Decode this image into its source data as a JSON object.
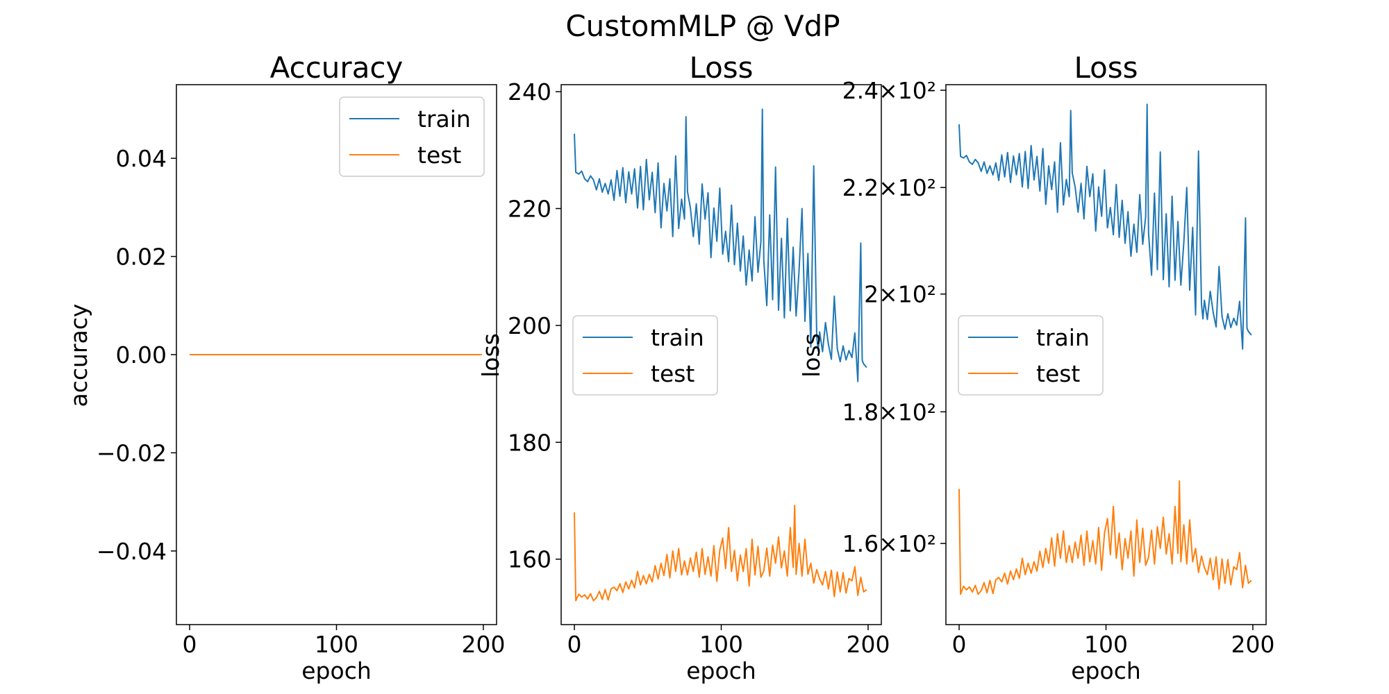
{
  "figure_title": "CustomMLP @ VdP",
  "colors": {
    "train": "#1f77b4",
    "test": "#ff7f0e"
  },
  "chart_data": [
    {
      "type": "line",
      "title": "Accuracy",
      "xlabel": "epoch",
      "ylabel": "accuracy",
      "xlim": [
        -9,
        209
      ],
      "ylim": [
        -0.055,
        0.055
      ],
      "xticks": [
        0,
        100,
        200
      ],
      "xticklabels": [
        "0",
        "100",
        "200"
      ],
      "yticks": [
        0.04,
        0.02,
        0.0,
        -0.02,
        -0.04
      ],
      "yticklabels": [
        "0.04",
        "0.02",
        "0.00",
        "−0.02",
        "−0.04"
      ],
      "legend": "upper right",
      "series": [
        {
          "name": "train",
          "x": [
            0,
            199
          ],
          "y": [
            0,
            0
          ]
        },
        {
          "name": "test",
          "x": [
            0,
            199
          ],
          "y": [
            0,
            0
          ]
        }
      ]
    },
    {
      "type": "line",
      "title": "Loss",
      "xlabel": "epoch",
      "ylabel": "loss",
      "xlim": [
        -9,
        209
      ],
      "ylim": [
        148.8,
        241.2
      ],
      "xticks": [
        0,
        100,
        200
      ],
      "xticklabels": [
        "0",
        "100",
        "200"
      ],
      "yticks": [
        240,
        220,
        200,
        180,
        160
      ],
      "yticklabels": [
        "240",
        "220",
        "200",
        "180",
        "160"
      ],
      "legend": "center left",
      "series": [
        {
          "name": "train",
          "x": [
            0,
            1,
            3,
            5,
            7,
            9,
            11,
            13,
            15,
            17,
            19,
            21,
            23,
            25,
            27,
            29,
            31,
            33,
            35,
            37,
            39,
            41,
            43,
            45,
            47,
            49,
            51,
            53,
            55,
            57,
            59,
            61,
            63,
            65,
            67,
            69,
            71,
            73,
            75,
            76,
            77,
            79,
            81,
            83,
            85,
            87,
            89,
            91,
            93,
            95,
            97,
            99,
            101,
            103,
            105,
            107,
            109,
            111,
            113,
            115,
            117,
            119,
            121,
            123,
            125,
            127,
            128,
            129,
            131,
            133,
            135,
            137,
            139,
            141,
            143,
            145,
            147,
            149,
            151,
            153,
            155,
            157,
            159,
            161,
            163,
            165,
            166,
            167,
            169,
            171,
            173,
            175,
            177,
            179,
            181,
            183,
            185,
            187,
            189,
            191,
            193,
            195,
            196,
            197,
            199
          ],
          "y": [
            232.8,
            226.2,
            225.9,
            226.4,
            225.1,
            224.6,
            225.6,
            224.9,
            223.2,
            225.1,
            222.8,
            224.3,
            222.5,
            224.9,
            221.4,
            226.5,
            222.1,
            227.0,
            221.0,
            226.3,
            222.5,
            226.8,
            220.1,
            227.2,
            219.8,
            228.4,
            221.5,
            226.2,
            219.3,
            227.8,
            216.7,
            224.3,
            219.6,
            225.1,
            215.2,
            229.0,
            216.6,
            221.6,
            218.2,
            235.7,
            222.9,
            220.1,
            215.2,
            220.8,
            213.9,
            224.2,
            218.2,
            222.7,
            211.6,
            220.1,
            214.4,
            223.5,
            212.2,
            216.1,
            210.9,
            220.6,
            210.4,
            217.5,
            209.3,
            215.3,
            206.9,
            212.9,
            207.6,
            218.6,
            209.1,
            214.3,
            237.0,
            211.1,
            203.4,
            218.9,
            204.4,
            227.1,
            202.6,
            214.9,
            201.3,
            218.3,
            202.5,
            213.4,
            201.6,
            209.5,
            220.0,
            200.7,
            212.3,
            196.3,
            227.3,
            198.2,
            195.6,
            198.9,
            195.5,
            200.5,
            196.7,
            194.2,
            205.0,
            196.0,
            193.8,
            196.5,
            194.1,
            195.7,
            194.5,
            198.7,
            190.4,
            214.1,
            194.0,
            193.4,
            192.8
          ]
        },
        {
          "name": "test",
          "x": [
            0,
            1,
            3,
            5,
            7,
            9,
            11,
            13,
            15,
            17,
            19,
            21,
            23,
            25,
            27,
            29,
            31,
            33,
            35,
            37,
            39,
            41,
            43,
            45,
            47,
            49,
            51,
            53,
            55,
            57,
            59,
            61,
            63,
            65,
            67,
            69,
            71,
            73,
            75,
            77,
            79,
            81,
            83,
            85,
            87,
            89,
            91,
            93,
            95,
            97,
            99,
            101,
            103,
            105,
            107,
            109,
            111,
            113,
            115,
            117,
            119,
            121,
            123,
            125,
            127,
            129,
            131,
            133,
            135,
            137,
            139,
            141,
            143,
            145,
            147,
            149,
            150,
            151,
            153,
            155,
            157,
            159,
            161,
            163,
            165,
            167,
            169,
            171,
            173,
            175,
            177,
            179,
            181,
            183,
            185,
            187,
            189,
            191,
            193,
            195,
            197,
            199
          ],
          "y": [
            168.0,
            152.9,
            154.0,
            153.5,
            153.9,
            153.2,
            154.1,
            152.9,
            153.4,
            154.5,
            153.1,
            154.8,
            153.0,
            154.9,
            155.2,
            154.6,
            155.8,
            154.3,
            156.1,
            154.9,
            156.4,
            155.1,
            157.9,
            155.6,
            157.2,
            155.8,
            157.4,
            156.1,
            158.9,
            156.6,
            159.3,
            157.2,
            160.8,
            156.8,
            161.4,
            157.9,
            161.8,
            157.3,
            159.7,
            157.3,
            160.2,
            157.9,
            161.2,
            156.9,
            161.8,
            157.4,
            160.4,
            157.1,
            162.3,
            156.2,
            161.5,
            163.6,
            158.4,
            165.4,
            157.9,
            161.5,
            156.3,
            160.7,
            157.9,
            161.8,
            155.4,
            163.4,
            157.3,
            162.2,
            156.9,
            158.0,
            161.9,
            157.1,
            162.4,
            159.3,
            163.8,
            158.5,
            161.4,
            157.1,
            165.4,
            158.6,
            169.2,
            157.4,
            162.7,
            157.1,
            163.4,
            157.4,
            159.3,
            155.9,
            158.2,
            156.6,
            155.6,
            157.9,
            154.9,
            158.1,
            153.6,
            157.8,
            154.4,
            157.7,
            154.2,
            156.7,
            156.3,
            158.7,
            153.8,
            156.9,
            154.4,
            154.8
          ]
        }
      ]
    },
    {
      "type": "line",
      "title": "Loss",
      "xlabel": "epoch",
      "ylabel": "loss",
      "yscale": "log",
      "xlim": [
        -9,
        209
      ],
      "ylim": [
        148.8,
        241.2
      ],
      "xticks": [
        0,
        100,
        200
      ],
      "xticklabels": [
        "0",
        "100",
        "200"
      ],
      "yticks": [
        240,
        220,
        200,
        180,
        160
      ],
      "yticklabels": [
        "2.4×10²",
        "2.2×10²",
        "2×10²",
        "1.8×10²",
        "1.6×10²"
      ],
      "legend": "center left",
      "series_same_as_panel": 2
    }
  ]
}
